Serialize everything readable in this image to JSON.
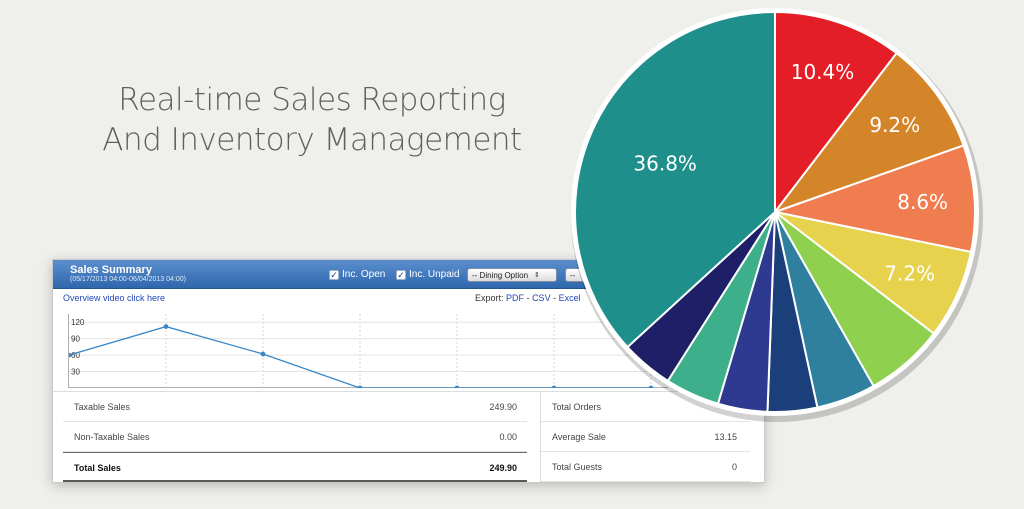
{
  "headline": {
    "line1": "Real-time Sales Reporting",
    "line2": "And Inventory Management"
  },
  "sales_summary": {
    "title": "Sales Summary",
    "date_range": "(05/17/2013 04:00-06/04/2013 04:00)",
    "checkboxes": [
      {
        "label": "Inc. Open",
        "checked": true
      },
      {
        "label": "Inc. Unpaid",
        "checked": true
      }
    ],
    "dining_select": "-- Dining Option",
    "second_select": "--",
    "overview_link": "Overview video click here",
    "export": {
      "label": "Export:",
      "pdf": "PDF",
      "csv": "CSV",
      "excel": "Excel",
      "sep": "-"
    },
    "left_stats": [
      {
        "label": "Taxable Sales",
        "value": "249.90"
      },
      {
        "label": "Non-Taxable Sales",
        "value": "0.00"
      }
    ],
    "total": {
      "label": "Total Sales",
      "value": "249.90"
    },
    "right_stats": [
      {
        "label": "Total Orders",
        "value": ""
      },
      {
        "label": "Average Sale",
        "value": "13.15"
      },
      {
        "label": "Total Guests",
        "value": "0"
      }
    ]
  },
  "chart_data": [
    {
      "type": "line",
      "yticks": [
        "120",
        "90",
        "60",
        "30"
      ],
      "ylim": [
        0,
        135
      ],
      "x": [
        0,
        1,
        2,
        3,
        4,
        5,
        6
      ],
      "values": [
        60,
        112,
        62,
        0,
        0,
        0,
        0
      ],
      "color": "#3a86c8",
      "grid": true
    },
    {
      "type": "pie",
      "slices": [
        {
          "label": "10.4%",
          "value": 10.4,
          "color": "#e31e26"
        },
        {
          "label": "9.2%",
          "value": 9.2,
          "color": "#d4852a"
        },
        {
          "label": "8.6%",
          "value": 8.6,
          "color": "#f07d4f"
        },
        {
          "label": "7.2%",
          "value": 7.2,
          "color": "#e6d24c"
        },
        {
          "label": "",
          "value": 6.4,
          "color": "#8fd14f"
        },
        {
          "label": "",
          "value": 4.8,
          "color": "#2f7f9e"
        },
        {
          "label": "",
          "value": 4.0,
          "color": "#1a3f7a"
        },
        {
          "label": "",
          "value": 4.0,
          "color": "#2e3a8f"
        },
        {
          "label": "",
          "value": 4.4,
          "color": "#3daf8a"
        },
        {
          "label": "",
          "value": 4.2,
          "color": "#1e1f66"
        },
        {
          "label": "36.8%",
          "value": 36.8,
          "color": "#1f8f8c"
        }
      ]
    }
  ]
}
